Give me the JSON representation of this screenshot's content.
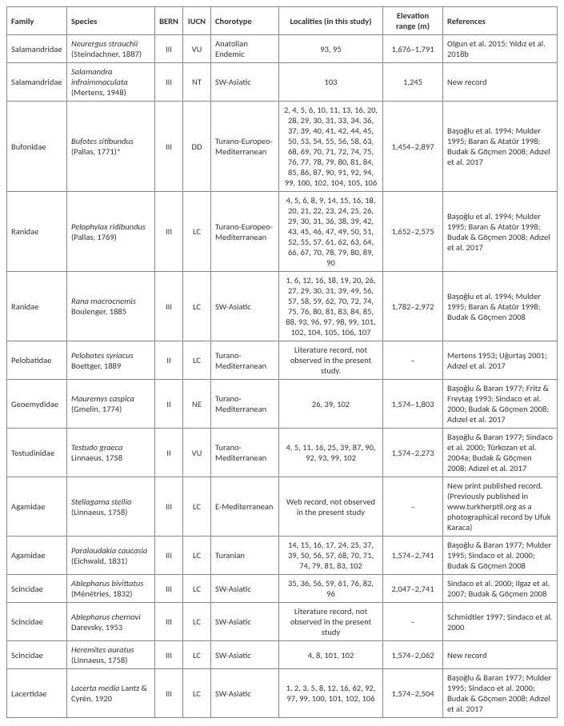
{
  "headers": {
    "family": "Family",
    "species": "Species",
    "bern": "BERN",
    "iucn": "IUCN",
    "chorotype": "Chorotype",
    "localities": "Localities (in this study)",
    "elev": "Elevation range (m)",
    "refs": "References"
  },
  "rows": [
    {
      "family": "Salamandridae",
      "species_ital": "Neurergus strauchii",
      "species_auth": " (Steindachner, 1887)",
      "bern": "III",
      "iucn": "VU",
      "chorotype": "Anatolian Endemic",
      "localities": "93, 95",
      "elev": "1,676–1,791",
      "refs": "Olgun et al. 2015; Yıldız et al. 2018b"
    },
    {
      "family": "Salamandridae",
      "species_ital": "Salamandra infraimmaculata",
      "species_auth": " (Mertens, 1948)",
      "bern": "III",
      "iucn": "NT",
      "chorotype": "SW-Asiatic",
      "localities": "103",
      "elev": "1,245",
      "refs": "New record"
    },
    {
      "family": "Bufonidae",
      "species_ital": "Bufotes sitibundus",
      "species_auth": " (Pallas, 1771)*",
      "bern": "III",
      "iucn": "DD",
      "chorotype": "Turano-Europeo-Mediterranean",
      "localities": "2, 4, 5, 6, 10, 11, 13, 16, 20, 28, 29, 30, 31, 33, 34, 36, 37, 39, 40, 41, 42, 44, 45, 50, 53, 54, 55, 56, 58, 63, 68, 69, 70, 71, 72, 74, 75, 76, 77, 78, 79, 80, 81, 84, 85, 86, 87, 90, 91, 92, 94, 99, 100, 102, 104, 105, 106",
      "elev": "1,454–2,897",
      "refs": "Başoğlu et al. 1994; Mulder 1995; Baran & Atatür 1998; Budak & Göçmen 2008; Adızel et al. 2017"
    },
    {
      "family": "Ranidae",
      "species_ital": "Pelophylax ridibundus",
      "species_auth": " (Pallas, 1769)",
      "bern": "III",
      "iucn": "LC",
      "chorotype": "Turano-Europeo-Mediterranean",
      "localities": "4, 5, 6, 8, 9, 14, 15, 16, 18, 20, 21, 22, 23, 24, 25, 26, 29, 30, 31, 36, 38, 39, 42, 43, 45, 46, 47, 49, 50, 51, 52, 55, 57, 61, 62, 63, 64, 66, 67, 70, 78, 79, 80, 89, 90",
      "elev": "1,652–2,575",
      "refs": "Başoğlu et al. 1994; Mulder 1995; Baran & Atatür 1998; Budak & Göçmen 2008; Adızel et al. 2017"
    },
    {
      "family": "Ranidae",
      "species_ital": "Rana macrocnemis",
      "species_auth": " Boulenger, 1885",
      "bern": "III",
      "iucn": "LC",
      "chorotype": "SW-Asiatic",
      "localities": "1, 6, 12, 16, 18, 19, 20, 26, 27, 29, 30, 31, 39, 49, 56, 57, 58, 59, 62, 70, 72, 74, 75, 76, 80, 81, 83, 84, 85, 88, 93, 96, 97, 98, 99, 101, 102, 104, 105, 106, 107",
      "elev": "1,782–2,972",
      "refs": "Başoğlu et al. 1994; Mulder 1995; Baran & Atatür 1998; Budak & Göçmen 2008"
    },
    {
      "family": "Pelobatidae",
      "species_ital": "Pelobates syriacus",
      "species_auth": " Boettger, 1889",
      "bern": "II",
      "iucn": "LC",
      "chorotype": "Turano-Mediterranean",
      "localities": "Literature record, not observed in the present study.",
      "elev": "–",
      "refs": "Mertens 1953; Uğurtaş 2001; Adızel et al. 2017"
    },
    {
      "family": "Geoemydidae",
      "species_ital": "Mauremys caspica",
      "species_auth": " (Gmelin, 1774)",
      "bern": "II",
      "iucn": "NE",
      "chorotype": "Turano-Mediterranean",
      "localities": "26, 39, 102",
      "elev": "1,574–1,803",
      "refs": "Başoğlu & Baran 1977; Fritz & Freytag 1993; Sindaco et al. 2000; Budak & Göçmen 2008; Adızel et al. 2017"
    },
    {
      "family": "Testudinidae",
      "species_ital": "Testudo graeca",
      "species_auth": " Linnaeus, 1758",
      "bern": "II",
      "iucn": "VU",
      "chorotype": "Turano-Mediterranean",
      "localities": "4, 5, 11, 16, 25, 39, 87, 90, 92, 93, 99, 102",
      "elev": "1,574–2,273",
      "refs": "Başoğlu & Baran 1977; Sindaco et al. 2000; Türkozan et al. 2004a; Budak & Göçmen 2008; Adızel et al. 2017"
    },
    {
      "family": "Agamidae",
      "species_ital": "Stellagama stellio",
      "species_auth": " (Linnaeus, 1758)",
      "bern": "III",
      "iucn": "LC",
      "chorotype": "E-Mediterranean",
      "localities": "Web record, not observed in the present study",
      "elev": "–",
      "refs": "New print published record. (Previously published in www.turkherptil.org as a photographical record by Ufuk Karaca)"
    },
    {
      "family": "Agamidae",
      "species_ital": "Paralaudakia caucasia",
      "species_auth": " (Eichwald, 1831)",
      "bern": "III",
      "iucn": "LC",
      "chorotype": "Turanian",
      "localities": "14, 15, 16, 17, 24, 25, 37, 39, 50, 56, 57, 68, 70, 71, 74, 79, 81, 83, 102",
      "elev": "1,574–2,741",
      "refs": "Başoğlu & Baran 1977; Mulder 1995; Sindaco et al. 2000; Budak & Göçmen 2008"
    },
    {
      "family": "Scincidae",
      "species_ital": "Ablepharus bivittatus",
      "species_auth": " (Ménétries, 1832)",
      "bern": "III",
      "iucn": "LC",
      "chorotype": "SW-Asiatic",
      "localities": "35, 36, 56, 59, 61, 76, 82, 96",
      "elev": "2,047–2,741",
      "refs": "Sindaco et al. 2000; Ilgaz et al. 2007; Budak & Göçmen 2008"
    },
    {
      "family": "Scincidae",
      "species_ital": "Ablepharus chernovi",
      "species_auth": " Darevsky, 1953",
      "bern": "III",
      "iucn": "LC",
      "chorotype": "SW-Asiatic",
      "localities": "Literature record, not observed in the present study",
      "elev": "–",
      "refs": "Schmidtler 1997; Sindaco et al. 2000"
    },
    {
      "family": "Scincidae",
      "species_ital": "Heremites auratus",
      "species_auth": " (Linnaeus, 1758)",
      "bern": "III",
      "iucn": "LC",
      "chorotype": "SW-Asiatic",
      "localities": "4, 8, 101, 102",
      "elev": "1,574–2,062",
      "refs": "New record"
    },
    {
      "family": "Lacertidae",
      "species_ital": "Lacerta media",
      "species_auth": " Lantz & Cyrén, 1920",
      "bern": "III",
      "iucn": "LC",
      "chorotype": "SW-Asiatic",
      "localities": "1, 2, 3, 5, 8, 12, 16, 62, 92, 97, 99, 100, 101, 102, 106",
      "elev": "1,574–2,504",
      "refs": "Başoğlu & Baran 1977; Mulder 1995; Sindaco et al. 2000; Budak & Göçmen 2008; Adızel et al. 2017"
    }
  ]
}
